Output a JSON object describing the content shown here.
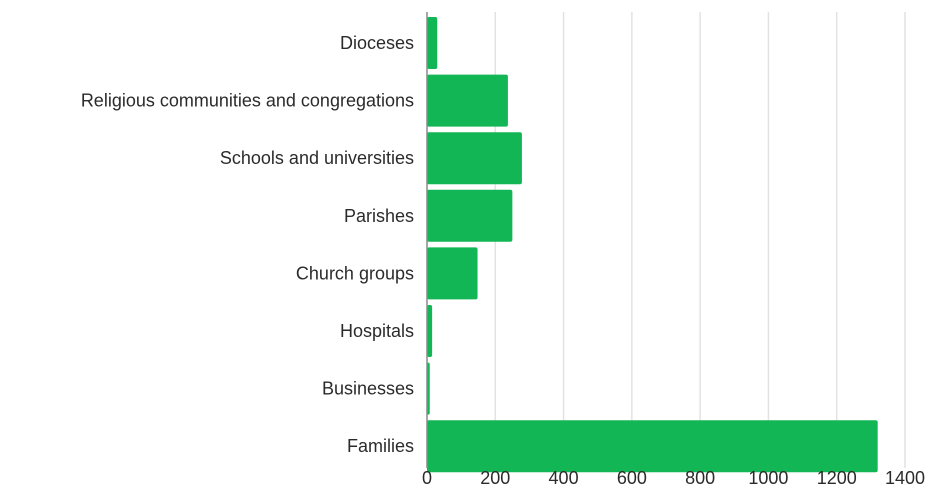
{
  "colors": {
    "bar": "#13b655",
    "grid": "#e2e2e2",
    "text": "#2b2b2b"
  },
  "chart_data": {
    "type": "bar",
    "orientation": "horizontal",
    "categories": [
      "Dioceses",
      "Religious communities and congregations",
      "Schools and universities",
      "Parishes",
      "Church groups",
      "Hospitals",
      "Businesses",
      "Families"
    ],
    "values": [
      30,
      237,
      278,
      250,
      148,
      15,
      8,
      1320
    ],
    "xlim": [
      0,
      1400
    ],
    "xticks": [
      0,
      200,
      400,
      600,
      800,
      1000,
      1200,
      1400
    ],
    "xlabel": "",
    "ylabel": "",
    "title": "",
    "grid": "vertical",
    "legend": "none"
  }
}
